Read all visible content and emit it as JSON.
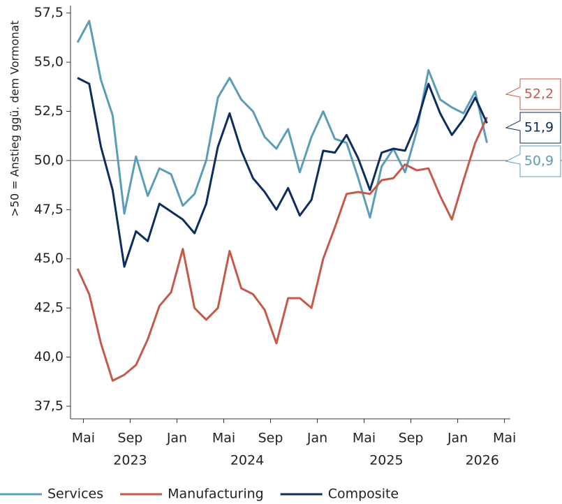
{
  "chart_data": {
    "type": "line",
    "y_label": ">50 = Anstieg ggü. dem Vormonat",
    "x": [
      0,
      1,
      2,
      3,
      4,
      5,
      6,
      7,
      8,
      9,
      10,
      11,
      12,
      13,
      14,
      15,
      16,
      17,
      18,
      19,
      20,
      21,
      22,
      23,
      24,
      25,
      26,
      27,
      28,
      29,
      30,
      31,
      32,
      33,
      34,
      35
    ],
    "series": [
      {
        "name": "Services",
        "color": "#5b9db8",
        "values": [
          56.0,
          57.1,
          54.1,
          52.3,
          47.3,
          50.2,
          48.2,
          49.6,
          49.3,
          47.7,
          48.3,
          50.0,
          53.2,
          54.2,
          53.1,
          52.5,
          51.2,
          50.6,
          51.6,
          49.4,
          51.2,
          52.5,
          51.1,
          50.9,
          49.1,
          47.1,
          49.7,
          50.6,
          49.4,
          51.5,
          54.6,
          53.1,
          52.7,
          52.4,
          53.5,
          50.9
        ],
        "value_labels": [
          null,
          null,
          null,
          null,
          null,
          null,
          null,
          null,
          null,
          null,
          null,
          null,
          null,
          null,
          null,
          null,
          null,
          null,
          null,
          null,
          null,
          null,
          null,
          null,
          null,
          null,
          null,
          null,
          null,
          null,
          null,
          null,
          null,
          null,
          null,
          "50,9"
        ]
      },
      {
        "name": "Manufacturing",
        "color": "#c55a4b",
        "values": [
          44.5,
          43.2,
          40.7,
          38.8,
          39.1,
          39.6,
          40.9,
          42.6,
          43.3,
          45.5,
          42.5,
          41.9,
          42.5,
          45.4,
          43.5,
          43.2,
          42.4,
          40.7,
          43.0,
          43.0,
          42.5,
          45.0,
          46.6,
          48.3,
          48.4,
          48.3,
          49.0,
          49.1,
          49.8,
          49.5,
          49.6,
          48.2,
          47.0,
          49.0,
          50.9,
          52.2
        ],
        "value_labels": [
          null,
          null,
          null,
          null,
          null,
          null,
          null,
          null,
          null,
          null,
          null,
          null,
          null,
          null,
          null,
          null,
          null,
          null,
          null,
          null,
          null,
          null,
          null,
          null,
          null,
          null,
          null,
          null,
          null,
          null,
          null,
          null,
          null,
          null,
          null,
          "52,2"
        ]
      },
      {
        "name": "Composite",
        "color": "#0c2d5e",
        "values": [
          54.2,
          53.9,
          50.7,
          48.5,
          44.6,
          46.4,
          45.9,
          47.8,
          47.4,
          47.0,
          46.3,
          47.8,
          50.7,
          52.4,
          50.5,
          49.1,
          48.4,
          47.5,
          48.6,
          47.2,
          48.0,
          50.5,
          50.4,
          51.3,
          50.1,
          48.5,
          50.4,
          50.6,
          50.5,
          51.9,
          53.9,
          52.4,
          51.3,
          52.1,
          53.2,
          51.9
        ],
        "value_labels": [
          null,
          null,
          null,
          null,
          null,
          null,
          null,
          null,
          null,
          null,
          null,
          null,
          null,
          null,
          null,
          null,
          null,
          null,
          null,
          null,
          null,
          null,
          null,
          null,
          null,
          null,
          null,
          null,
          null,
          null,
          null,
          null,
          null,
          null,
          null,
          "51,9"
        ]
      }
    ],
    "xlim": [
      -0.6,
      37
    ],
    "xticks": [
      {
        "value": 0.5,
        "label": "Mai"
      },
      {
        "value": 4.5,
        "label": "Sep"
      },
      {
        "value": 8.5,
        "label": "Jan"
      },
      {
        "value": 12.5,
        "label": "Mai"
      },
      {
        "value": 16.5,
        "label": "Sep"
      },
      {
        "value": 20.5,
        "label": "Jan"
      },
      {
        "value": 24.5,
        "label": "Mai"
      },
      {
        "value": 28.5,
        "label": "Sep"
      },
      {
        "value": 32.5,
        "label": "Jan"
      },
      {
        "value": 36.5,
        "label": "Mai"
      }
    ],
    "year_labels": [
      {
        "value": 4.5,
        "label": "2023"
      },
      {
        "value": 14.5,
        "label": "2024"
      },
      {
        "value": 26.4,
        "label": "2025"
      },
      {
        "value": 34.6,
        "label": "2026"
      }
    ],
    "ylim": [
      36.86,
      57.88
    ],
    "yticks": [
      {
        "value": 37.5,
        "label": "37,5"
      },
      {
        "value": 40,
        "label": "40,0"
      },
      {
        "value": 42.5,
        "label": "42,5"
      },
      {
        "value": 45,
        "label": "45,0"
      },
      {
        "value": 47.5,
        "label": "47,5"
      },
      {
        "value": 50,
        "label": "50,0"
      },
      {
        "value": 52.5,
        "label": "52,5"
      },
      {
        "value": 55,
        "label": "55,0"
      },
      {
        "value": 57.5,
        "label": "57,5"
      }
    ],
    "reference_line": 50,
    "legend": "bottom"
  }
}
